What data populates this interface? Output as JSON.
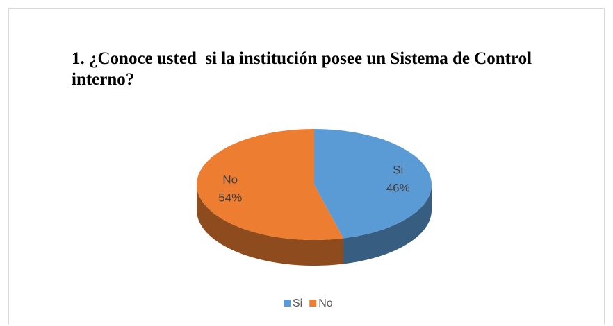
{
  "chart_data": {
    "type": "pie",
    "title": "1. ¿Conoce usted  si la institución posee un Sistema de Control interno?",
    "categories": [
      "Si",
      "No"
    ],
    "values": [
      46,
      54
    ],
    "value_labels": [
      "46%",
      "54%"
    ],
    "colors": [
      "#5b9bd5",
      "#ed7d31"
    ],
    "legend": "bottom"
  }
}
